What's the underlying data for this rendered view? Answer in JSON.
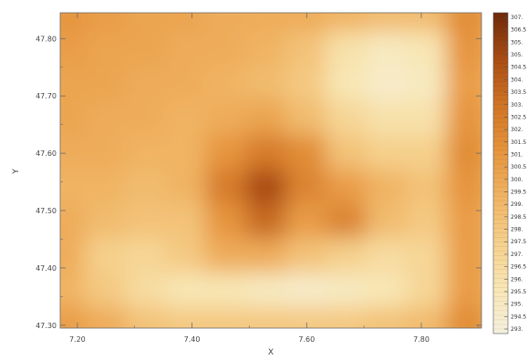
{
  "chart_data": {
    "type": "heatmap",
    "title": "",
    "xlabel": "X",
    "ylabel": "Y",
    "xlim": [
      7.17,
      7.905
    ],
    "ylim": [
      47.295,
      47.845
    ],
    "x_ticks": [
      "7.20",
      "7.40",
      "7.60",
      "7.80"
    ],
    "x_tick_values": [
      7.2,
      7.4,
      7.6,
      7.8
    ],
    "y_ticks": [
      "47.30",
      "47.40",
      "47.50",
      "47.60",
      "47.70",
      "47.80"
    ],
    "y_tick_values": [
      47.3,
      47.4,
      47.5,
      47.6,
      47.7,
      47.8
    ],
    "colorbar": {
      "labels": [
        "307.",
        "306.5",
        "305.",
        "305.",
        "304.5",
        "304.",
        "303.5",
        "303.",
        "302.5",
        "302.",
        "301.5",
        "301.",
        "300.5",
        "300.",
        "299.5",
        "299.",
        "298.5",
        "298.",
        "297.5",
        "297.",
        "296.5",
        "296.",
        "295.5",
        "295.",
        "294.5",
        "293."
      ],
      "min": 293,
      "max": 307,
      "colors_low_to_high": [
        "#f5f0de",
        "#f8e6b4",
        "#f5d08c",
        "#f0b464",
        "#e6943c",
        "#d07424",
        "#a84c14",
        "#6e2a0a"
      ]
    },
    "grid_x": [
      7.18,
      7.25,
      7.32,
      7.39,
      7.46,
      7.53,
      7.6,
      7.67,
      7.74,
      7.81,
      7.88
    ],
    "grid_y": [
      47.84,
      47.78,
      47.72,
      47.66,
      47.6,
      47.54,
      47.48,
      47.42,
      47.36,
      47.3
    ],
    "values": [
      [
        301.0,
        300.5,
        300.0,
        300.0,
        299.5,
        299.5,
        299.5,
        299.0,
        298.5,
        298.5,
        301.5
      ],
      [
        300.5,
        300.0,
        300.0,
        299.5,
        299.5,
        299.0,
        298.0,
        295.5,
        294.5,
        295.0,
        301.0
      ],
      [
        300.0,
        300.0,
        299.5,
        299.5,
        299.0,
        298.5,
        297.5,
        295.0,
        294.0,
        294.5,
        300.5
      ],
      [
        300.0,
        299.5,
        299.5,
        299.0,
        299.5,
        300.0,
        298.5,
        296.5,
        295.5,
        295.5,
        301.0
      ],
      [
        299.5,
        299.5,
        299.0,
        299.0,
        301.0,
        302.5,
        301.5,
        298.0,
        297.0,
        297.0,
        301.5
      ],
      [
        299.0,
        299.0,
        298.5,
        299.0,
        302.5,
        305.0,
        302.0,
        300.5,
        299.0,
        298.0,
        301.0
      ],
      [
        299.5,
        298.5,
        298.0,
        298.0,
        301.0,
        303.5,
        300.5,
        302.0,
        298.5,
        297.5,
        300.5
      ],
      [
        299.5,
        297.0,
        296.5,
        297.5,
        299.5,
        299.5,
        298.0,
        297.0,
        296.0,
        296.5,
        300.5
      ],
      [
        299.0,
        297.5,
        296.0,
        295.0,
        295.0,
        294.5,
        294.0,
        294.5,
        295.0,
        296.5,
        300.5
      ],
      [
        300.5,
        299.5,
        298.0,
        297.5,
        297.5,
        297.5,
        297.5,
        297.5,
        298.0,
        298.5,
        301.5
      ]
    ]
  }
}
